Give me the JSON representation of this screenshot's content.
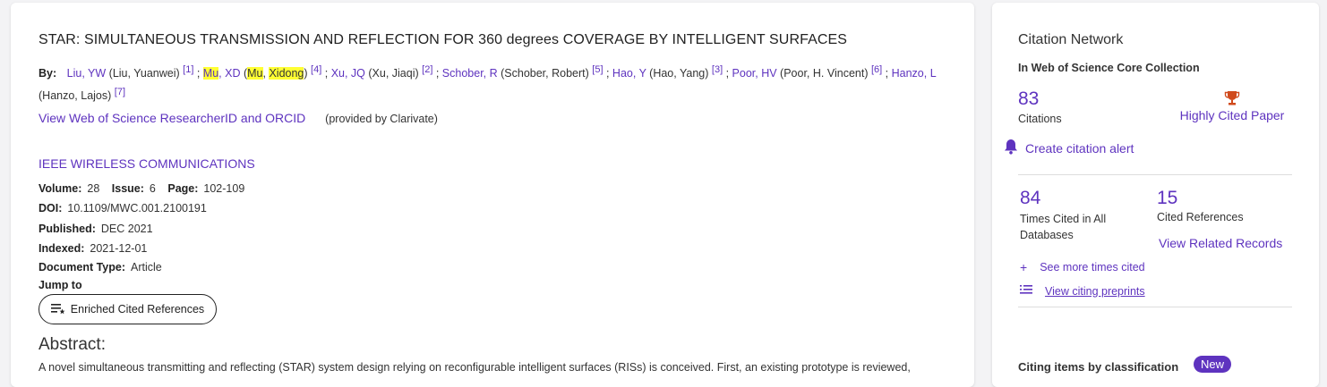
{
  "record": {
    "title": "STAR: SIMULTANEOUS TRANSMISSION AND REFLECTION FOR 360 degrees COVERAGE BY INTELLIGENT SURFACES",
    "by_label": "By:",
    "authors": [
      {
        "short": "Liu, YW",
        "full": "Liu, Yuanwei",
        "ref": "[1]"
      },
      {
        "short_a": "Mu",
        "short_b": ", XD",
        "full_a": "Mu",
        "full_b": "Xidong",
        "ref": "[4]"
      },
      {
        "short": "Xu, JQ",
        "full": "Xu, Jiaqi",
        "ref": "[2]"
      },
      {
        "short": "Schober, R",
        "full": "Schober, Robert",
        "ref": "[5]"
      },
      {
        "short": "Hao, Y",
        "full": "Hao, Yang",
        "ref": "[3]"
      },
      {
        "short": "Poor, HV",
        "full": "Poor, H. Vincent",
        "ref": "[6]"
      },
      {
        "short": "Hanzo, L",
        "full": "Hanzo, Lajos",
        "ref": "[7]"
      }
    ],
    "researcher_link": "View Web of Science ResearcherID and ORCID",
    "provided_by": "(provided by Clarivate)",
    "journal": "IEEE WIRELESS COMMUNICATIONS",
    "volume_label": "Volume:",
    "volume": "28",
    "issue_label": "Issue:",
    "issue": "6",
    "page_label": "Page:",
    "page": "102-109",
    "doi_label": "DOI:",
    "doi": "10.1109/MWC.001.2100191",
    "published_label": "Published:",
    "published": "DEC 2021",
    "indexed_label": "Indexed:",
    "indexed": "2021-12-01",
    "doctype_label": "Document Type:",
    "doctype": "Article",
    "jump_label": "Jump to",
    "jump_button": "Enriched Cited References",
    "abstract_heading": "Abstract:",
    "abstract_text": "A novel simultaneous transmitting and reflecting (STAR) system design relying on reconfigurable intelligent surfaces (RISs) is conceived. First, an existing prototype is reviewed,"
  },
  "citation_network": {
    "title": "Citation Network",
    "subtitle": "In Web of Science Core Collection",
    "citations_count": "83",
    "citations_label": "Citations",
    "highly_cited": "Highly Cited Paper",
    "create_alert": "Create citation alert",
    "times_cited_count": "84",
    "times_cited_label_1": "Times Cited in All",
    "times_cited_label_2": "Databases",
    "cited_refs_count": "15",
    "cited_refs_label": "Cited References",
    "view_related": "View Related Records",
    "see_more": "See more times cited",
    "view_preprints": "View citing preprints",
    "classification_title": "Citing items by classification",
    "new_badge": "New"
  },
  "colors": {
    "accent": "#5e33bf",
    "highlight": "#ffff33",
    "trophy": "#d04a1c"
  }
}
